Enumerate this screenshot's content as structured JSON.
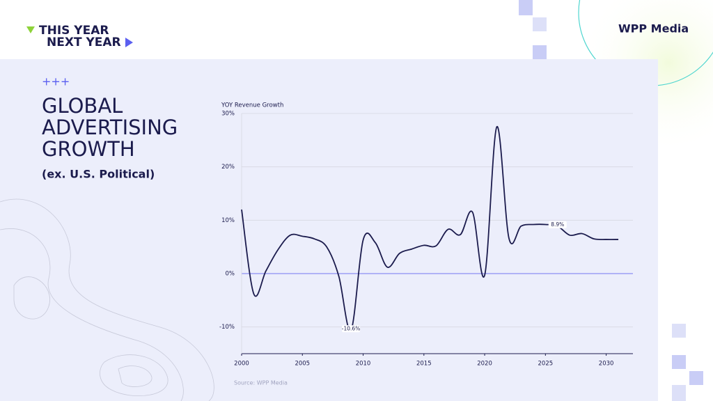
{
  "slide": {
    "brand_line1": "THIS YEAR",
    "brand_line2": "NEXT YEAR",
    "logo": "WPP Media",
    "marker": "+++",
    "title_lines": [
      "GLOBAL",
      "ADVERTISING",
      "GROWTH"
    ],
    "subtitle": "(ex. U.S. Political)",
    "source": "Source: WPP Media"
  },
  "chart_data": {
    "type": "line",
    "title": "YOY Revenue Growth",
    "x": [
      2000,
      2001,
      2002,
      2003,
      2004,
      2005,
      2006,
      2007,
      2008,
      2009,
      2010,
      2011,
      2012,
      2013,
      2014,
      2015,
      2016,
      2017,
      2018,
      2019,
      2020,
      2021,
      2022,
      2023,
      2024,
      2025,
      2026,
      2027,
      2028,
      2029,
      2030,
      2031
    ],
    "values": [
      12,
      -3.8,
      0.5,
      4.5,
      7.2,
      7.0,
      6.5,
      5.0,
      -0.5,
      -10.6,
      6.3,
      5.8,
      1.2,
      3.8,
      4.6,
      5.3,
      5.2,
      8.3,
      7.3,
      11.5,
      -0.3,
      27.5,
      6.6,
      8.9,
      9.2,
      9.2,
      8.9,
      7.2,
      7.5,
      6.5,
      6.4,
      6.4
    ],
    "value_labels": [
      null,
      null,
      null,
      null,
      null,
      null,
      null,
      null,
      null,
      "-10.6%",
      null,
      null,
      null,
      null,
      null,
      null,
      null,
      null,
      null,
      null,
      null,
      null,
      null,
      null,
      null,
      null,
      "8.9%",
      null,
      null,
      null,
      null,
      null
    ],
    "color": "#1b1b4d",
    "zero_line_color": "#8b8ef2",
    "xlim": [
      2000,
      2032.2
    ],
    "xticks": [
      2000,
      2005,
      2010,
      2015,
      2020,
      2025,
      2030
    ],
    "ylim": [
      -15,
      30
    ],
    "yticks": [
      {
        "value": -10,
        "label": "-10%"
      },
      {
        "value": 0,
        "label": "0%"
      },
      {
        "value": 10,
        "label": "10%"
      },
      {
        "value": 20,
        "label": "20%"
      },
      {
        "value": 30,
        "label": "30%"
      }
    ],
    "grid": true
  }
}
